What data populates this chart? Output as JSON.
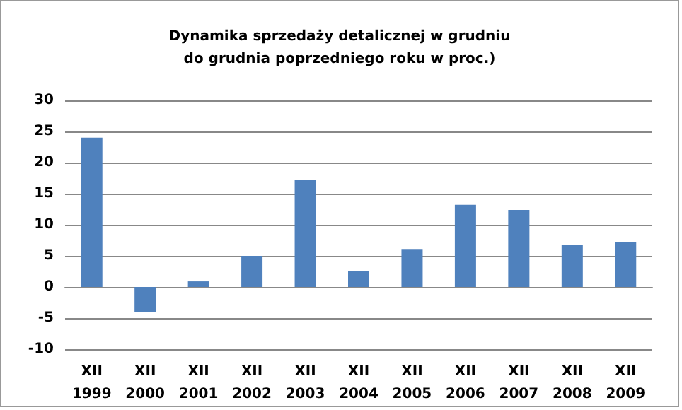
{
  "chart_data": {
    "type": "bar",
    "title": "Dynamika sprzedaży detalicznej w grudniu\ndo grudnia poprzedniego roku w proc.)",
    "categories": [
      "XII\n1999",
      "XII\n2000",
      "XII\n2001",
      "XII\n2002",
      "XII\n2003",
      "XII\n2004",
      "XII\n2005",
      "XII\n2006",
      "XII\n2007",
      "XII\n2008",
      "XII\n2009"
    ],
    "values": [
      24.0,
      -4,
      0.9,
      5.0,
      17.2,
      2.6,
      6.1,
      13.2,
      12.4,
      6.7,
      7.2
    ],
    "color": "#4f81bd",
    "ylim": [
      -10,
      30
    ],
    "yticks": [
      -10,
      -5,
      0,
      5,
      10,
      15,
      20,
      25,
      30
    ],
    "grid": "y"
  }
}
